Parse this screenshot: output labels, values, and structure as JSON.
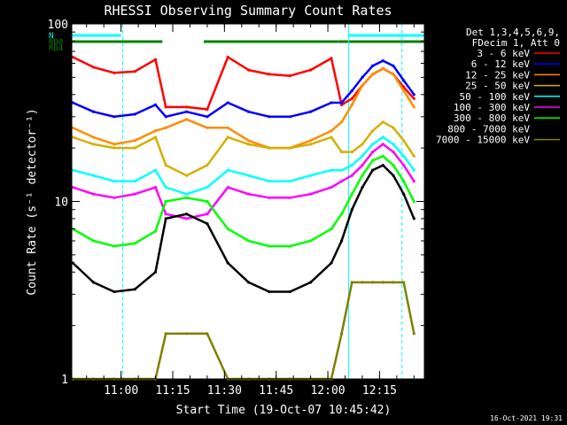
{
  "chart_data": {
    "type": "line",
    "title": "RHESSI Observing Summary Count Rates",
    "xlabel": "Start Time (19-Oct-07 10:45:42)",
    "ylabel": "Count Rate (s⁻¹ detector⁻¹)",
    "y_scale": "log",
    "ylim": [
      1,
      100
    ],
    "xlim": [
      "10:45:42",
      "12:28:00"
    ],
    "x_ticks": [
      "11:00",
      "11:15",
      "11:30",
      "11:45",
      "12:00",
      "12:15"
    ],
    "y_ticks": [
      "1",
      "10",
      "100"
    ],
    "detector_info": [
      "Det 1,3,4,5,6,9,",
      "FDecim 1, Att 0"
    ],
    "timestamp": "16-Oct-2021 19:31",
    "flags": [
      {
        "label": "N",
        "color": "#00ffff",
        "segments": [
          [
            "10:45:42",
            "11:00:00"
          ],
          [
            "12:06:00",
            "12:28:00"
          ]
        ]
      },
      {
        "label": "RD0",
        "color": "#008000",
        "segments": [
          [
            "10:45:42",
            "11:12:00"
          ],
          [
            "11:24:00",
            "12:03:00"
          ],
          [
            "12:03:00",
            "12:28:00"
          ]
        ]
      },
      {
        "label": "RD4",
        "color": "#008000",
        "segments": []
      }
    ],
    "vlines": [
      {
        "time": "10:45:42",
        "style": "solid"
      },
      {
        "time": "11:00:30",
        "style": "dashed"
      },
      {
        "time": "12:06:00",
        "style": "solid"
      },
      {
        "time": "12:21:30",
        "style": "dashed"
      }
    ],
    "x": [
      "10:46",
      "10:52",
      "10:58",
      "11:04",
      "11:10",
      "11:13",
      "11:19",
      "11:25",
      "11:31",
      "11:37",
      "11:43",
      "11:49",
      "11:55",
      "12:01",
      "12:04",
      "12:07",
      "12:10",
      "12:13",
      "12:16",
      "12:19",
      "12:22",
      "12:25"
    ],
    "series": [
      {
        "name": "3 - 6 keV",
        "color": "#ff0000",
        "values": [
          65,
          57,
          53,
          54,
          63,
          34,
          34,
          33,
          65,
          55,
          52,
          51,
          55,
          64,
          35,
          38,
          45,
          52,
          56,
          52,
          44,
          38
        ]
      },
      {
        "name": "6 - 12 keV",
        "color": "#0000ff",
        "values": [
          36,
          32,
          30,
          31,
          35,
          30,
          32,
          30,
          36,
          32,
          30,
          30,
          32,
          36,
          36,
          42,
          50,
          58,
          62,
          58,
          48,
          40
        ]
      },
      {
        "name": "12 - 25 keV",
        "color": "#ff8c00",
        "values": [
          26,
          23,
          21,
          22,
          25,
          26,
          29,
          26,
          26,
          22,
          20,
          20,
          22,
          25,
          28,
          35,
          45,
          52,
          56,
          52,
          42,
          34
        ]
      },
      {
        "name": "25 - 50 keV",
        "color": "#d4b000",
        "values": [
          23,
          21,
          20,
          20,
          23,
          16,
          14,
          16,
          23,
          21,
          20,
          20,
          21,
          23,
          19,
          19,
          21,
          25,
          28,
          26,
          22,
          18
        ]
      },
      {
        "name": "50 - 100 keV",
        "color": "#00ffff",
        "values": [
          15,
          14,
          13,
          13,
          15,
          12,
          11,
          12,
          15,
          14,
          13,
          13,
          14,
          15,
          15,
          16,
          18,
          21,
          23,
          21,
          18,
          15
        ]
      },
      {
        "name": "100 - 300 keV",
        "color": "#ff00ff",
        "values": [
          12,
          11,
          10.5,
          11,
          12,
          8.5,
          8,
          8.5,
          12,
          11,
          10.5,
          10.5,
          11,
          12,
          13,
          14,
          16,
          19,
          21,
          19,
          16,
          13
        ]
      },
      {
        "name": "300 - 800 keV",
        "color": "#00ff00",
        "values": [
          7,
          6,
          5.6,
          5.8,
          6.8,
          10,
          10.5,
          10,
          7,
          6,
          5.6,
          5.6,
          6,
          7,
          8.5,
          11,
          14,
          17,
          18,
          16,
          13,
          10
        ]
      },
      {
        "name": "800 - 7000 keV",
        "color": "#000000",
        "values": [
          4.5,
          3.5,
          3.1,
          3.2,
          4,
          8,
          8.5,
          7.5,
          4.5,
          3.5,
          3.1,
          3.1,
          3.5,
          4.5,
          6,
          9,
          12,
          15,
          16,
          14,
          11,
          8
        ]
      },
      {
        "name": "7000 - 15000 keV",
        "color": "#808000",
        "values": [
          1,
          1,
          1,
          1,
          1,
          1.8,
          1.8,
          1.8,
          1,
          1,
          1,
          1,
          1,
          1,
          1.8,
          3.5,
          3.5,
          3.5,
          3.5,
          3.5,
          3.5,
          1.8
        ]
      }
    ]
  }
}
